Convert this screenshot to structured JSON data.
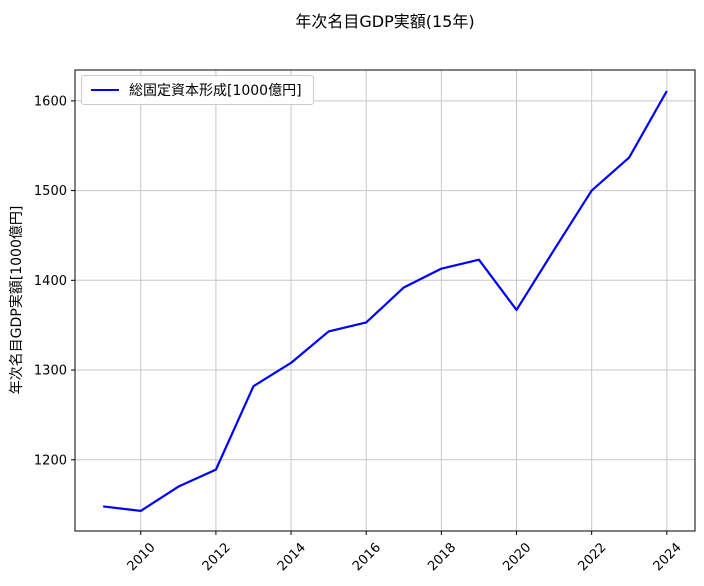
{
  "chart_data": {
    "type": "line",
    "title": "年次名目GDP実額(15年)",
    "xlabel": "",
    "ylabel": "年次名目GDP実額[1000億円]",
    "x": [
      2009,
      2010,
      2011,
      2012,
      2013,
      2014,
      2015,
      2016,
      2017,
      2018,
      2019,
      2020,
      2021,
      2022,
      2023,
      2024
    ],
    "series": [
      {
        "name": "総固定資本形成[1000億円]",
        "color": "#0000ff",
        "values": [
          1148,
          1143,
          1170,
          1189,
          1282,
          1308,
          1343,
          1353,
          1392,
          1413,
          1423,
          1367,
          1434,
          1500,
          1537,
          1611
        ]
      }
    ],
    "xlim": [
      2008.25,
      2024.75
    ],
    "ylim": [
      1120.6,
      1634.4
    ],
    "xticks": [
      2010,
      2012,
      2014,
      2016,
      2018,
      2020,
      2022,
      2024
    ],
    "xtick_labels": [
      "2010",
      "2012",
      "2014",
      "2016",
      "2018",
      "2020",
      "2022",
      "2024"
    ],
    "yticks": [
      1200,
      1300,
      1400,
      1500,
      1600
    ],
    "ytick_labels": [
      "1200",
      "1300",
      "1400",
      "1500",
      "1600"
    ],
    "grid": true,
    "grid_color": "#c8c8c8",
    "axis_color": "#000000",
    "legend_position": "upper-left",
    "x_tick_rotation_deg": 45
  }
}
